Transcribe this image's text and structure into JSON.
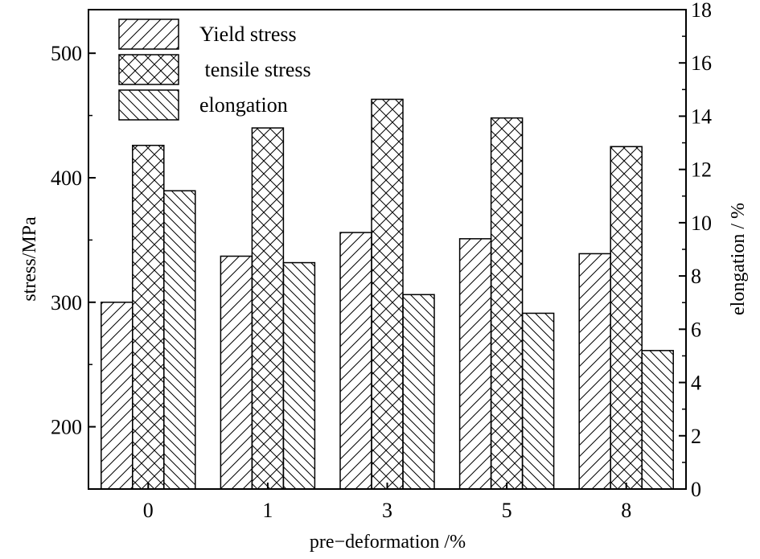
{
  "chart_data": {
    "type": "bar",
    "xlabel": "pre−deformation /%",
    "ylabel_left": "stress/MPa",
    "ylabel_right": "elongation / %",
    "categories": [
      "0",
      "1",
      "3",
      "5",
      "8"
    ],
    "ylim_left": [
      150,
      535
    ],
    "yticks_left": [
      200,
      300,
      400,
      500
    ],
    "ylim_right": [
      0,
      18
    ],
    "yticks_right": [
      0,
      2,
      4,
      6,
      8,
      10,
      12,
      14,
      16,
      18
    ],
    "grid": false,
    "legend_position": "top-left",
    "series": [
      {
        "name": "Yield stress",
        "axis": "left",
        "pattern": "diag-forward",
        "values": [
          300,
          337,
          356,
          351,
          339
        ]
      },
      {
        "name": " tensile stress",
        "axis": "left",
        "pattern": "crosshatch",
        "values": [
          426,
          440,
          463,
          448,
          425
        ]
      },
      {
        "name": "elongation",
        "axis": "right",
        "pattern": "diag-back",
        "values": [
          11.2,
          8.5,
          7.3,
          6.6,
          5.2
        ]
      }
    ]
  }
}
